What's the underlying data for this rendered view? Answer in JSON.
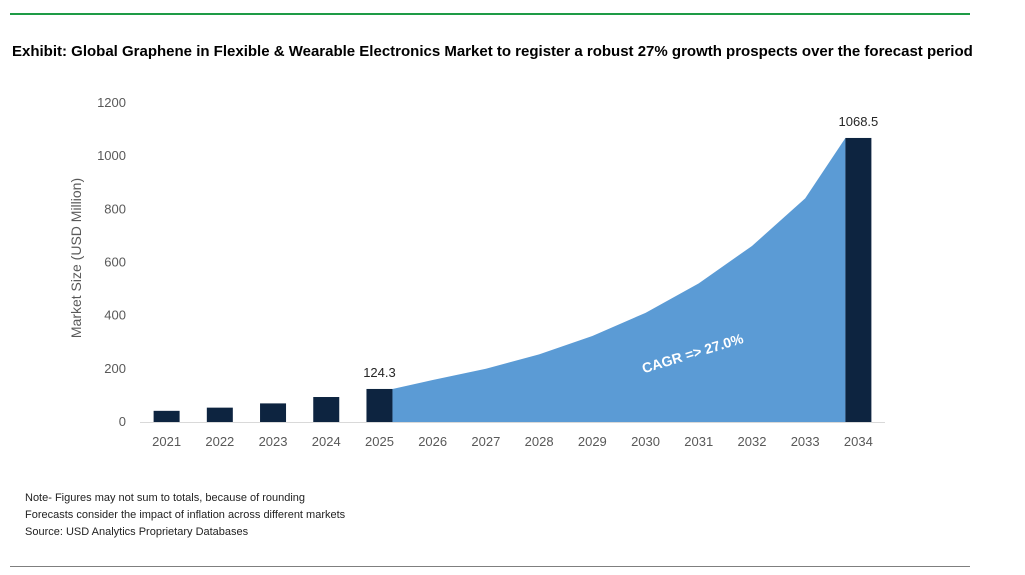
{
  "title": "Exhibit: Global Graphene in Flexible & Wearable Electronics Market  to register a robust 27% growth prospects over the forecast period",
  "notes": [
    "Note- Figures may not sum to totals, because of rounding",
    "Forecasts consider the impact of inflation across different markets",
    "Source: USD Analytics Proprietary Databases"
  ],
  "colors": {
    "bar": "#0d2440",
    "area": "#5b9bd5",
    "rule": "#1e9b46",
    "axis": "#7f7f7f",
    "tick_text": "#595959"
  },
  "chart_data": {
    "type": "bar",
    "title": "",
    "xlabel": "",
    "ylabel": "Market Size (USD Million)",
    "ylim": [
      0,
      1200
    ],
    "yticks": [
      0,
      200,
      400,
      600,
      800,
      1000,
      1200
    ],
    "categories": [
      "2021",
      "2022",
      "2023",
      "2024",
      "2025",
      "2026",
      "2027",
      "2028",
      "2029",
      "2030",
      "2031",
      "2032",
      "2033",
      "2034"
    ],
    "series": [
      {
        "type": "bar",
        "values": [
          42,
          54,
          70,
          94,
          124.3,
          null,
          null,
          null,
          null,
          null,
          null,
          null,
          null,
          1068.5
        ],
        "data_labels": [
          null,
          null,
          null,
          null,
          "124.3",
          null,
          null,
          null,
          null,
          null,
          null,
          null,
          null,
          "1068.5"
        ]
      },
      {
        "type": "area",
        "values": [
          null,
          null,
          null,
          null,
          124.3,
          157.9,
          200.5,
          254.6,
          323.4,
          410.7,
          521.5,
          662.3,
          841.2,
          1068.5
        ]
      }
    ],
    "annotations": [
      {
        "text": "CAGR => 27.0%"
      }
    ],
    "grid": false,
    "legend": "none"
  }
}
